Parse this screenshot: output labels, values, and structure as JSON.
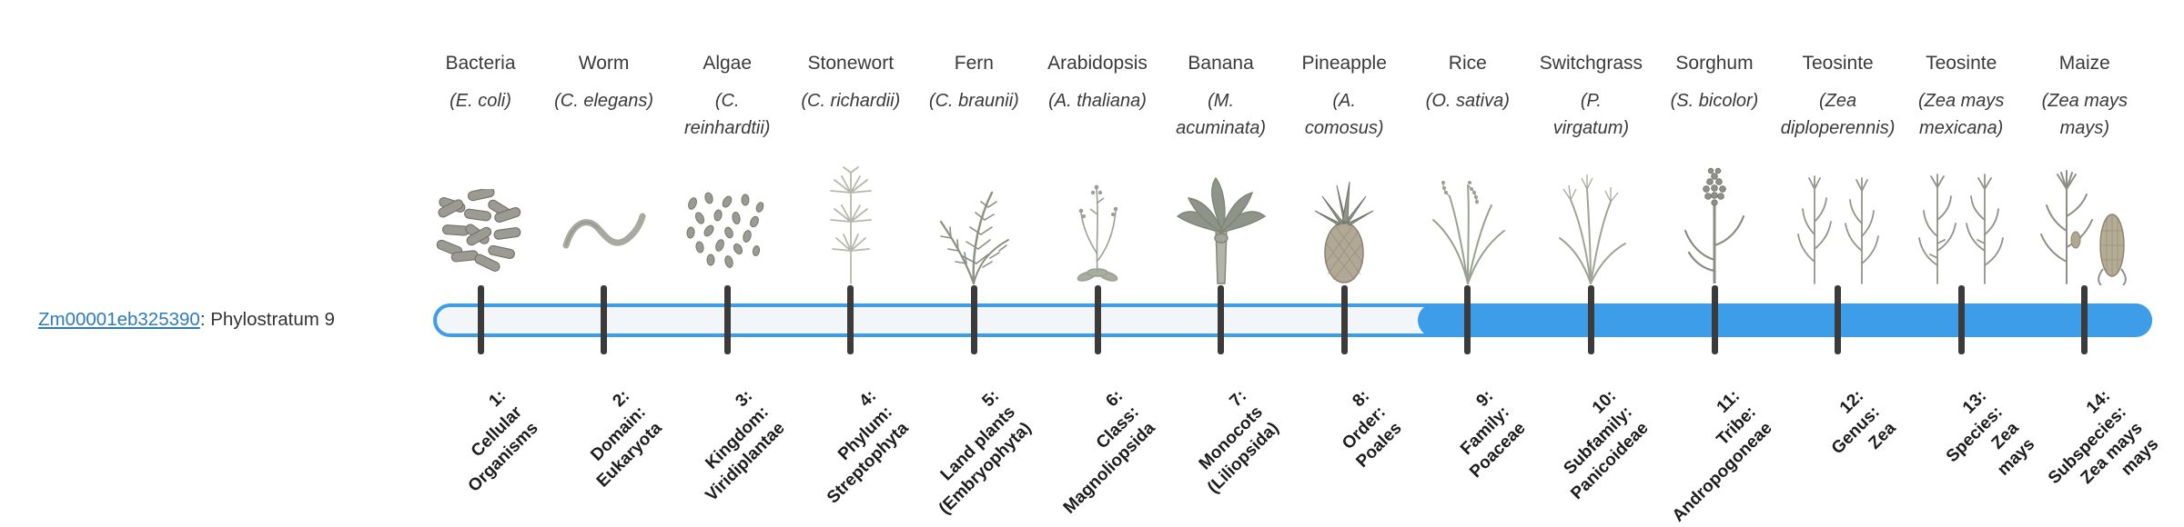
{
  "gene": {
    "id": "Zm00001eb325390",
    "annotation": ": Phylostratum 9"
  },
  "bar": {
    "color": "#3d9de9",
    "track_background": "#f3f6f9",
    "fill_start_stratum": 9,
    "total_strata": 14
  },
  "phylostrata": [
    {
      "number": 1,
      "organism": "Bacteria",
      "scientific_lines": [
        "(E. coli)"
      ],
      "icon": "bacteria-icon",
      "stratum_lines": [
        "1:",
        "Cellular",
        "Organisms"
      ],
      "filled": false
    },
    {
      "number": 2,
      "organism": "Worm",
      "scientific_lines": [
        "(C. elegans)"
      ],
      "icon": "worm-icon",
      "stratum_lines": [
        "2:",
        "Domain:",
        "Eukaryota"
      ],
      "filled": false
    },
    {
      "number": 3,
      "organism": "Algae",
      "scientific_lines": [
        "(C.",
        "reinhardtii)"
      ],
      "icon": "algae-icon",
      "stratum_lines": [
        "3:",
        "Kingdom:",
        "Viridiplantae"
      ],
      "filled": false
    },
    {
      "number": 4,
      "organism": "Stonewort",
      "scientific_lines": [
        "(C. richardii)"
      ],
      "icon": "stonewort-icon",
      "stratum_lines": [
        "4:",
        "Phylum:",
        "Streptophyta"
      ],
      "filled": false
    },
    {
      "number": 5,
      "organism": "Fern",
      "scientific_lines": [
        "(C. braunii)"
      ],
      "icon": "fern-icon",
      "stratum_lines": [
        "5:",
        "Land plants",
        "(Embryophyta)"
      ],
      "filled": false
    },
    {
      "number": 6,
      "organism": "Arabidopsis",
      "scientific_lines": [
        "(A. thaliana)"
      ],
      "icon": "arabidopsis-icon",
      "stratum_lines": [
        "6:",
        "Class:",
        "Magnoliopsida"
      ],
      "filled": false
    },
    {
      "number": 7,
      "organism": "Banana",
      "scientific_lines": [
        "(M.",
        "acuminata)"
      ],
      "icon": "banana-icon",
      "stratum_lines": [
        "7:",
        "Monocots",
        "(Liliopsida)"
      ],
      "filled": false
    },
    {
      "number": 8,
      "organism": "Pineapple",
      "scientific_lines": [
        "(A.",
        "comosus)"
      ],
      "icon": "pineapple-icon",
      "stratum_lines": [
        "8:",
        "Order:",
        "Poales"
      ],
      "filled": false
    },
    {
      "number": 9,
      "organism": "Rice",
      "scientific_lines": [
        "(O. sativa)"
      ],
      "icon": "rice-icon",
      "stratum_lines": [
        "9:",
        "Family:",
        "Poaceae"
      ],
      "filled": true
    },
    {
      "number": 10,
      "organism": "Switchgrass",
      "scientific_lines": [
        "(P.",
        "virgatum)"
      ],
      "icon": "switchgrass-icon",
      "stratum_lines": [
        "10:",
        "Subfamily:",
        "Panicoideae"
      ],
      "filled": true
    },
    {
      "number": 11,
      "organism": "Sorghum",
      "scientific_lines": [
        "(S. bicolor)"
      ],
      "icon": "sorghum-icon",
      "stratum_lines": [
        "11:",
        "Tribe:",
        "Andropogoneae"
      ],
      "filled": true
    },
    {
      "number": 12,
      "organism": "Teosinte",
      "scientific_lines": [
        "(Zea",
        "diploperennis)"
      ],
      "icon": "teosinte-diplo-icon",
      "stratum_lines": [
        "12:",
        "Genus:",
        "Zea"
      ],
      "filled": true
    },
    {
      "number": 13,
      "organism": "Teosinte",
      "scientific_lines": [
        "(Zea mays",
        "mexicana)"
      ],
      "icon": "teosinte-mex-icon",
      "stratum_lines": [
        "13:",
        "Species:",
        "Zea",
        "mays"
      ],
      "filled": true
    },
    {
      "number": 14,
      "organism": "Maize",
      "scientific_lines": [
        "(Zea mays",
        "mays)"
      ],
      "icon": "maize-icon",
      "stratum_lines": [
        "14:",
        "Subspecies:",
        "Zea mays",
        "mays"
      ],
      "filled": true
    }
  ]
}
